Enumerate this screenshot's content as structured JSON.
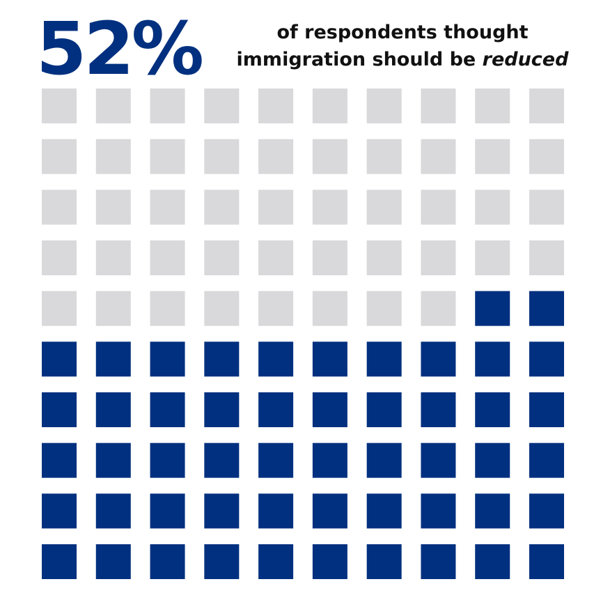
{
  "chart_data": {
    "type": "waffle",
    "values": [
      52
    ],
    "value_labels": [
      "52%"
    ],
    "subtitle_lines": [
      "of respondents thought",
      "immigration should be"
    ],
    "subtitle_emphasis": "reduced",
    "grid_size": 10,
    "color": "#00307f",
    "empty_color": "#d9d8da"
  }
}
